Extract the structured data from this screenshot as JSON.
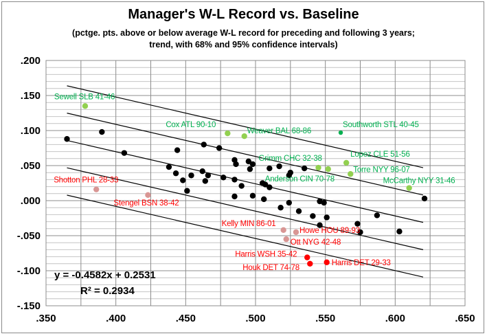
{
  "chart_data": {
    "type": "scatter",
    "title": "Manager's W-L Record vs. Baseline",
    "subtitle_lines": [
      "(pctge. pts. above or below average W-L record for preceding and following 3 years;",
      "trend, with 68% and 95% confidence intervals)"
    ],
    "xlim": [
      0.35,
      0.65
    ],
    "ylim": [
      -0.15,
      0.2
    ],
    "x_ticks": [
      ".350",
      ".400",
      ".450",
      ".500",
      ".550",
      ".600",
      ".650"
    ],
    "y_ticks": [
      ".200",
      ".150",
      ".100",
      ".050",
      ".000",
      "-.050",
      "-.100",
      "-.150"
    ],
    "grid": true,
    "colors": {
      "black": "#000000",
      "light_green": "#92d050",
      "dark_green": "#00b050",
      "pink": "#d99694",
      "red": "#ff0000",
      "green_text": "#00b050",
      "red_text": "#ff0000"
    },
    "trend": {
      "slope": -0.4582,
      "intercept": 0.2531,
      "equation_label": "y = -0.4582x + 0.2531",
      "r2_label": "R² = 0.2934",
      "band_68": 0.039,
      "band_95": 0.078,
      "x_range": [
        0.365,
        0.62
      ]
    },
    "points": [
      {
        "x": 0.365,
        "y": 0.088,
        "c": "black"
      },
      {
        "x": 0.39,
        "y": 0.098,
        "c": "black"
      },
      {
        "x": 0.406,
        "y": 0.068,
        "c": "black"
      },
      {
        "x": 0.438,
        "y": 0.048,
        "c": "black"
      },
      {
        "x": 0.444,
        "y": 0.072,
        "c": "black"
      },
      {
        "x": 0.443,
        "y": 0.039,
        "c": "black"
      },
      {
        "x": 0.448,
        "y": 0.029,
        "c": "black"
      },
      {
        "x": 0.451,
        "y": 0.014,
        "c": "black"
      },
      {
        "x": 0.454,
        "y": 0.036,
        "c": "black"
      },
      {
        "x": 0.462,
        "y": 0.042,
        "c": "black"
      },
      {
        "x": 0.463,
        "y": 0.08,
        "c": "black"
      },
      {
        "x": 0.464,
        "y": 0.028,
        "c": "black"
      },
      {
        "x": 0.466,
        "y": 0.036,
        "c": "black"
      },
      {
        "x": 0.474,
        "y": 0.075,
        "c": "black"
      },
      {
        "x": 0.477,
        "y": 0.033,
        "c": "black"
      },
      {
        "x": 0.485,
        "y": 0.058,
        "c": "black"
      },
      {
        "x": 0.485,
        "y": 0.03,
        "c": "black"
      },
      {
        "x": 0.486,
        "y": 0.052,
        "c": "black"
      },
      {
        "x": 0.49,
        "y": 0.021,
        "c": "black"
      },
      {
        "x": 0.485,
        "y": 0.006,
        "c": "black"
      },
      {
        "x": 0.495,
        "y": 0.056,
        "c": "black"
      },
      {
        "x": 0.496,
        "y": 0.045,
        "c": "black"
      },
      {
        "x": 0.498,
        "y": 0.052,
        "c": "black"
      },
      {
        "x": 0.498,
        "y": 0.007,
        "c": "black"
      },
      {
        "x": 0.51,
        "y": 0.046,
        "c": "black"
      },
      {
        "x": 0.517,
        "y": 0.049,
        "c": "black"
      },
      {
        "x": 0.525,
        "y": 0.04,
        "c": "black"
      },
      {
        "x": 0.524,
        "y": 0.036,
        "c": "black"
      },
      {
        "x": 0.535,
        "y": 0.046,
        "c": "black"
      },
      {
        "x": 0.505,
        "y": 0.025,
        "c": "black"
      },
      {
        "x": 0.507,
        "y": 0.023,
        "c": "black"
      },
      {
        "x": 0.51,
        "y": 0.019,
        "c": "black"
      },
      {
        "x": 0.506,
        "y": 0.002,
        "c": "black"
      },
      {
        "x": 0.524,
        "y": -0.003,
        "c": "black"
      },
      {
        "x": 0.518,
        "y": -0.01,
        "c": "black"
      },
      {
        "x": 0.531,
        "y": -0.015,
        "c": "black"
      },
      {
        "x": 0.546,
        "y": -0.001,
        "c": "black"
      },
      {
        "x": 0.549,
        "y": -0.003,
        "c": "black"
      },
      {
        "x": 0.621,
        "y": 0.003,
        "c": "black"
      },
      {
        "x": 0.541,
        "y": -0.022,
        "c": "black"
      },
      {
        "x": 0.551,
        "y": -0.024,
        "c": "black"
      },
      {
        "x": 0.546,
        "y": -0.035,
        "c": "black"
      },
      {
        "x": 0.573,
        "y": -0.033,
        "c": "black"
      },
      {
        "x": 0.575,
        "y": -0.045,
        "c": "black"
      },
      {
        "x": 0.587,
        "y": -0.021,
        "c": "black"
      },
      {
        "x": 0.603,
        "y": -0.044,
        "c": "black"
      },
      {
        "x": 0.378,
        "y": 0.135,
        "c": "light_green",
        "label": "Sewell SLB 41-46"
      },
      {
        "x": 0.48,
        "y": 0.096,
        "c": "light_green",
        "label": "Cox ATL 90-10"
      },
      {
        "x": 0.492,
        "y": 0.092,
        "c": "light_green",
        "label": "Weaver BAL 68-86"
      },
      {
        "x": 0.561,
        "y": 0.097,
        "c": "dark_green",
        "label": "Southworth STL 40-45"
      },
      {
        "x": 0.545,
        "y": 0.047,
        "c": "light_green",
        "label": "Grimm CHC 32-38"
      },
      {
        "x": 0.552,
        "y": 0.045,
        "c": "light_green",
        "label": "Anderson CIN 70-78"
      },
      {
        "x": 0.565,
        "y": 0.054,
        "c": "light_green",
        "label": "Lopez CLE 51-56"
      },
      {
        "x": 0.568,
        "y": 0.038,
        "c": "light_green",
        "label": "Torre NYY 96-07"
      },
      {
        "x": 0.61,
        "y": 0.018,
        "c": "light_green",
        "label": "McCarthy NYY 31-46"
      },
      {
        "x": 0.386,
        "y": 0.016,
        "c": "pink",
        "label": "Shotton PHL 28-33"
      },
      {
        "x": 0.423,
        "y": 0.008,
        "c": "pink",
        "label": "Stengel BSN 38-42"
      },
      {
        "x": 0.52,
        "y": -0.042,
        "c": "pink",
        "label": "Kelly MIN 86-01"
      },
      {
        "x": 0.529,
        "y": -0.045,
        "c": "pink",
        "label": "Howe HOU 89-93"
      },
      {
        "x": 0.522,
        "y": -0.055,
        "c": "pink",
        "label": "Ott NYG 42-48"
      },
      {
        "x": 0.537,
        "y": -0.081,
        "c": "red",
        "label": "Harris WSH 35-42"
      },
      {
        "x": 0.539,
        "y": -0.09,
        "c": "red",
        "label": "Houk DET 74-78"
      },
      {
        "x": 0.551,
        "y": -0.088,
        "c": "red",
        "label": "Harris DET 29-33"
      }
    ]
  }
}
